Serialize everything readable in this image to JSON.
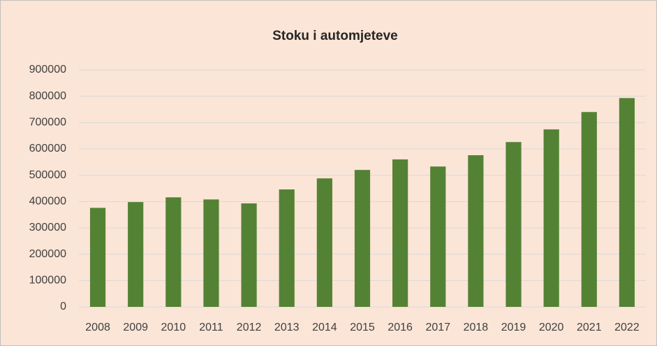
{
  "chart_data": {
    "type": "bar",
    "title": "Stoku i automjeteve",
    "categories": [
      "2008",
      "2009",
      "2010",
      "2011",
      "2012",
      "2013",
      "2014",
      "2015",
      "2016",
      "2017",
      "2018",
      "2019",
      "2020",
      "2021",
      "2022"
    ],
    "values": [
      376000,
      398000,
      416000,
      408000,
      393000,
      446000,
      488000,
      520000,
      560000,
      533000,
      576000,
      626000,
      674000,
      740000,
      793000
    ],
    "color": "#548235",
    "ylim": [
      0,
      900000
    ],
    "yticks": [
      0,
      100000,
      200000,
      300000,
      400000,
      500000,
      600000,
      700000,
      800000,
      900000
    ],
    "grid": true
  }
}
